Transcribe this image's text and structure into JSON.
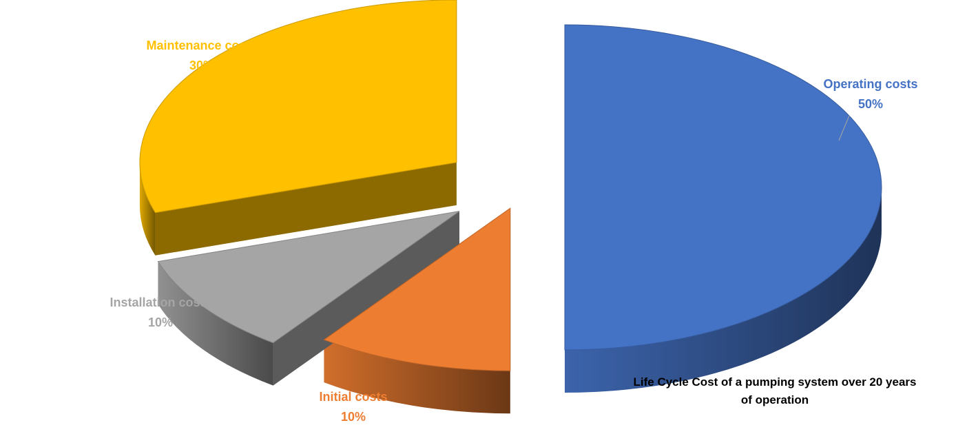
{
  "chart_data": {
    "type": "pie",
    "style": "3d-exploded",
    "title": "Life Cycle Cost of a pumping system over 20 years of operation",
    "legend": "none",
    "slices": [
      {
        "label": "Operating costs",
        "value": 50,
        "value_label": "50%",
        "color": "#4472C4"
      },
      {
        "label": "Initial costs",
        "value": 10,
        "value_label": "10%",
        "color": "#ED7D31"
      },
      {
        "label": "Installation costs",
        "value": 10,
        "value_label": "10%",
        "color": "#A5A5A5"
      },
      {
        "label": "Maintenance costs",
        "value": 30,
        "value_label": "30%",
        "color": "#FFC000"
      }
    ]
  }
}
